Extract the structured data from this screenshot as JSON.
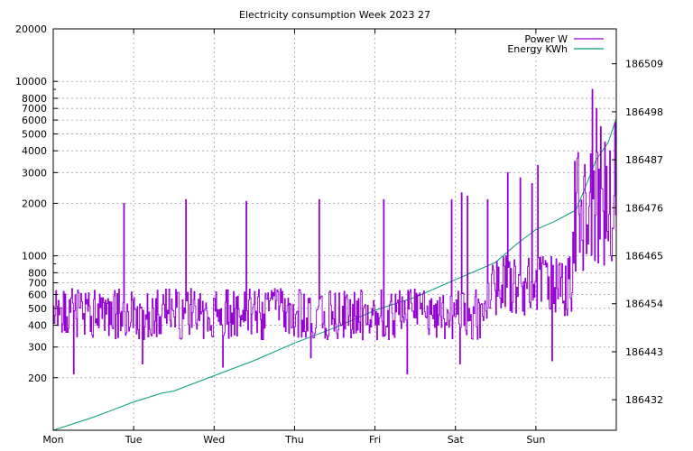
{
  "colors": {
    "power": "#9400d3",
    "energy": "#009e73",
    "grid": "#a0a0a0",
    "background": "#ffffff"
  },
  "chart_data": {
    "type": "line",
    "title": "Electricity consumption Week 2023 27",
    "x": {
      "tick_labels": [
        "Mon",
        "Tue",
        "Wed",
        "Thu",
        "Fri",
        "Sat",
        "Sun"
      ],
      "range_days": [
        0,
        7
      ]
    },
    "y_left": {
      "scale": "log",
      "range": [
        100,
        20000
      ],
      "ticks": [
        200,
        300,
        400,
        500,
        600,
        700,
        800,
        1000,
        2000,
        3000,
        4000,
        5000,
        6000,
        7000,
        8000,
        10000,
        20000
      ],
      "tick_labels": [
        "200",
        "300",
        "400",
        "500",
        "600",
        "700",
        "800",
        "1000",
        "2000",
        "3000",
        "4000",
        "5000",
        "6000",
        "7000",
        "8000",
        "10000",
        "20000"
      ]
    },
    "y_right": {
      "scale": "linear",
      "range": [
        186425,
        186517
      ],
      "ticks": [
        186432,
        186443,
        186454,
        186465,
        186476,
        186487,
        186498,
        186509
      ],
      "tick_labels": [
        "186432",
        "186443",
        "186454",
        "186465",
        "186476",
        "186487",
        "186498",
        "186509"
      ]
    },
    "grid": true,
    "legend_position": "top-right",
    "series": [
      {
        "name": "Power W",
        "axis": "left",
        "color": "#9400d3",
        "sampling_hours": 0.25,
        "pattern": "step",
        "baseline_ranges": [
          {
            "from_day": 0.0,
            "to_day": 5.4,
            "typical_low": 330,
            "typical_high": 650
          },
          {
            "from_day": 5.4,
            "to_day": 6.45,
            "typical_low": 450,
            "typical_high": 1000
          },
          {
            "from_day": 6.45,
            "to_day": 7.0,
            "typical_low": 800,
            "typical_high": 4000
          }
        ],
        "peaks": [
          {
            "day": 0.88,
            "value": 2000
          },
          {
            "day": 1.65,
            "value": 2100
          },
          {
            "day": 2.4,
            "value": 2050
          },
          {
            "day": 3.3,
            "value": 2100
          },
          {
            "day": 4.1,
            "value": 2100
          },
          {
            "day": 4.95,
            "value": 2100
          },
          {
            "day": 5.07,
            "value": 2300
          },
          {
            "day": 5.15,
            "value": 2200
          },
          {
            "day": 5.4,
            "value": 2100
          },
          {
            "day": 5.65,
            "value": 3000
          },
          {
            "day": 5.8,
            "value": 2800
          },
          {
            "day": 5.95,
            "value": 2600
          },
          {
            "day": 6.02,
            "value": 3300
          },
          {
            "day": 6.5,
            "value": 2300
          },
          {
            "day": 6.7,
            "value": 9000
          },
          {
            "day": 6.75,
            "value": 7000
          },
          {
            "day": 6.8,
            "value": 5500
          },
          {
            "day": 6.85,
            "value": 4500
          },
          {
            "day": 6.92,
            "value": 4000
          },
          {
            "day": 6.98,
            "value": 5800
          }
        ],
        "dips": [
          {
            "day": 0.25,
            "value": 210
          },
          {
            "day": 1.1,
            "value": 240
          },
          {
            "day": 2.1,
            "value": 230
          },
          {
            "day": 3.2,
            "value": 260
          },
          {
            "day": 4.4,
            "value": 210
          },
          {
            "day": 5.05,
            "value": 240
          },
          {
            "day": 6.2,
            "value": 250
          }
        ]
      },
      {
        "name": "Energy KWh",
        "axis": "right",
        "color": "#009e73",
        "points": [
          [
            0.0,
            186425.0
          ],
          [
            0.5,
            186428.0
          ],
          [
            1.0,
            186431.5
          ],
          [
            1.35,
            186433.5
          ],
          [
            1.5,
            186434.0
          ],
          [
            2.0,
            186437.5
          ],
          [
            2.5,
            186441.0
          ],
          [
            3.0,
            186445.0
          ],
          [
            3.5,
            186448.5
          ],
          [
            4.0,
            186452.5
          ],
          [
            4.5,
            186455.5
          ],
          [
            5.0,
            186459.5
          ],
          [
            5.5,
            186463.5
          ],
          [
            5.75,
            186467.5
          ],
          [
            6.0,
            186471.0
          ],
          [
            6.25,
            186473.0
          ],
          [
            6.5,
            186475.5
          ],
          [
            6.6,
            186480.0
          ],
          [
            6.75,
            186487.0
          ],
          [
            6.9,
            186491.0
          ],
          [
            7.0,
            186496.5
          ]
        ]
      }
    ]
  }
}
